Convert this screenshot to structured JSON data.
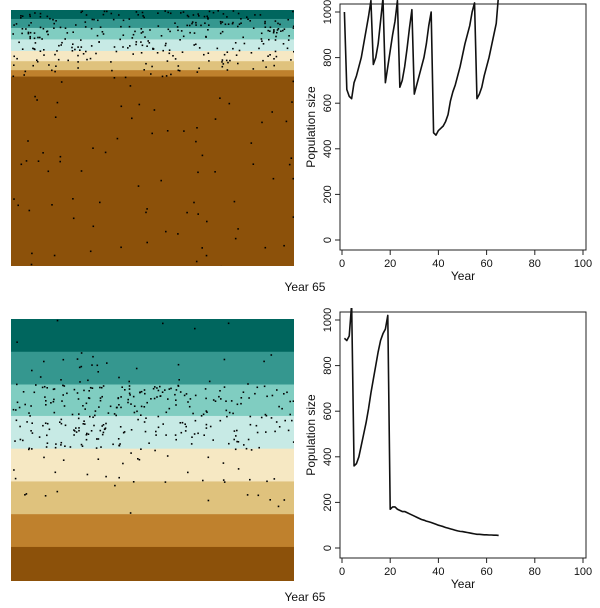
{
  "colors": {
    "bands": [
      "#00665e",
      "#35978f",
      "#80cdc1",
      "#c7eae5",
      "#f6e8c3",
      "#dfc27d",
      "#bf812d",
      "#8c510a"
    ],
    "line": "#111111",
    "axis": "#222222",
    "dot": "#000000"
  },
  "panels": [
    {
      "caption": "Year 65",
      "landscape": {
        "band_boundaries": [
          0,
          0.035,
          0.07,
          0.115,
          0.16,
          0.2,
          0.235,
          0.26,
          1.0
        ],
        "individual_density": [
          0.9,
          0.8,
          0.85,
          0.7,
          0.55,
          0.35,
          0.2,
          0.06
        ]
      },
      "chart_data": {
        "type": "line",
        "xlabel": "Year",
        "ylabel": "Population size",
        "xlim": [
          0,
          100
        ],
        "ylim": [
          0,
          1000
        ],
        "xticks": [
          "0",
          "20",
          "40",
          "60",
          "80",
          "100"
        ],
        "yticks": [
          "0",
          "200",
          "400",
          "600",
          "800",
          "1000"
        ],
        "series": [
          {
            "x": [
              1,
              2,
              3,
              4,
              5,
              6,
              7,
              8,
              9,
              10,
              11,
              12,
              13,
              14,
              15,
              16,
              17,
              18,
              19,
              20,
              21,
              22,
              23,
              24,
              25,
              26,
              27,
              28,
              29,
              30,
              31,
              32,
              33,
              34,
              35,
              36,
              37,
              38,
              39,
              40,
              41,
              42,
              43,
              44,
              45,
              46,
              47,
              48,
              49,
              50,
              51,
              52,
              53,
              54,
              55,
              56,
              57,
              58,
              59,
              60,
              61,
              62,
              63,
              64,
              65
            ],
            "y": [
              1000,
              660,
              630,
              620,
              690,
              720,
              760,
              800,
              860,
              920,
              980,
              1050,
              770,
              800,
              860,
              960,
              1060,
              690,
              760,
              830,
              900,
              960,
              1050,
              670,
              700,
              760,
              840,
              930,
              1010,
              640,
              680,
              720,
              760,
              800,
              860,
              940,
              1000,
              470,
              460,
              480,
              490,
              500,
              520,
              550,
              610,
              650,
              680,
              720,
              760,
              810,
              860,
              900,
              940,
              1000,
              1040,
              620,
              640,
              670,
              720,
              760,
              800,
              850,
              900,
              950,
              1080
            ]
          }
        ]
      }
    },
    {
      "caption": "Year 65",
      "landscape": {
        "band_boundaries": [
          0,
          0.125,
          0.25,
          0.37,
          0.495,
          0.62,
          0.745,
          0.87,
          1.0
        ],
        "individual_density": [
          0.02,
          0.12,
          0.7,
          0.55,
          0.12,
          0.05,
          0.0,
          0.0
        ]
      },
      "chart_data": {
        "type": "line",
        "xlabel": "Year",
        "ylabel": "Population size",
        "xlim": [
          0,
          100
        ],
        "ylim": [
          0,
          1000
        ],
        "xticks": [
          "0",
          "20",
          "40",
          "60",
          "80",
          "100"
        ],
        "yticks": [
          "0",
          "200",
          "400",
          "600",
          "800",
          "1000"
        ],
        "series": [
          {
            "x": [
              1,
              2,
              3,
              4,
              5,
              6,
              7,
              8,
              9,
              10,
              11,
              12,
              13,
              14,
              15,
              16,
              17,
              18,
              19,
              20,
              21,
              22,
              23,
              24,
              25,
              26,
              27,
              28,
              29,
              30,
              31,
              32,
              33,
              34,
              35,
              36,
              37,
              38,
              39,
              40,
              41,
              42,
              43,
              44,
              45,
              46,
              47,
              48,
              49,
              50,
              51,
              52,
              53,
              54,
              55,
              56,
              57,
              58,
              59,
              60,
              61,
              62,
              63,
              64,
              65
            ],
            "y": [
              920,
              910,
              930,
              1070,
              360,
              370,
              400,
              450,
              500,
              550,
              610,
              680,
              740,
              800,
              860,
              910,
              940,
              960,
              1020,
              170,
              180,
              180,
              170,
              165,
              160,
              160,
              155,
              150,
              145,
              140,
              135,
              130,
              125,
              122,
              118,
              115,
              112,
              108,
              104,
              100,
              97,
              94,
              90,
              87,
              84,
              81,
              78,
              75,
              73,
              72,
              70,
              68,
              66,
              64,
              62,
              60,
              60,
              59,
              58,
              58,
              57,
              57,
              56,
              56,
              55
            ]
          }
        ]
      }
    }
  ]
}
